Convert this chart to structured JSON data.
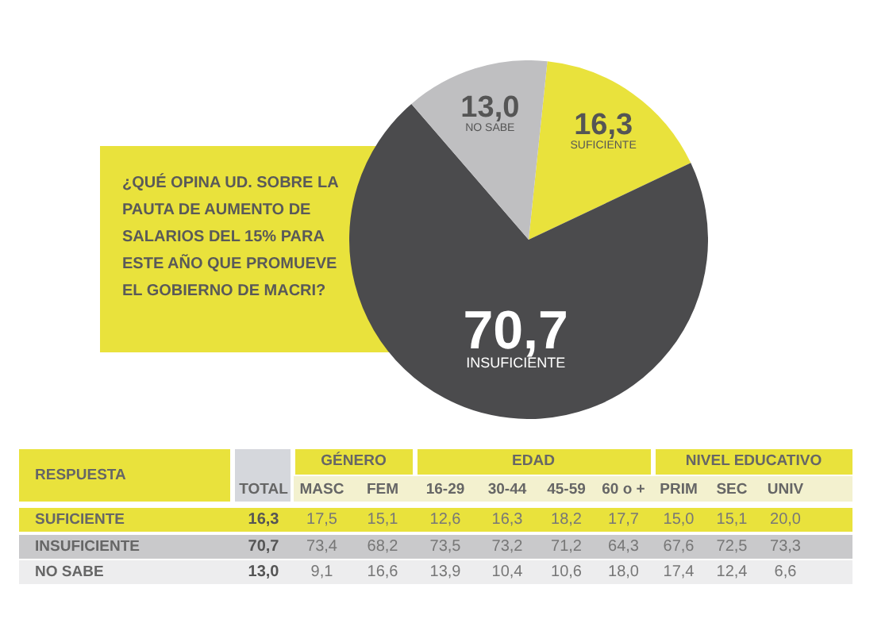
{
  "chart_data": [
    {
      "type": "pie",
      "title": "¿QUÉ OPINA UD. SOBRE LA PAUTA DE AUMENTO DE SALARIOS DEL 15% PARA ESTE AÑO QUE PROMUEVE EL GOBIERNO DE MACRI?",
      "categories": [
        "SUFICIENTE",
        "INSUFICIENTE",
        "NO SABE"
      ],
      "values": [
        16.3,
        70.7,
        13.0
      ],
      "colors": [
        "#e9e23c",
        "#4b4b4d",
        "#bfbfc1"
      ],
      "value_labels": [
        "16,3",
        "70,7",
        "13,0"
      ],
      "legend": false
    },
    {
      "type": "heatmap",
      "categories": [
        "TOTAL",
        "MASC",
        "FEM",
        "16-29",
        "30-44",
        "45-59",
        "60 o +",
        "PRIM",
        "SEC",
        "UNIV"
      ],
      "y_categories": [
        "SUFICIENTE",
        "INSUFICIENTE",
        "NO SABE"
      ],
      "cells": [
        [
          16.3,
          17.5,
          15.1,
          12.6,
          16.3,
          18.2,
          17.7,
          15.0,
          15.1,
          20.0
        ],
        [
          70.7,
          73.4,
          68.2,
          73.5,
          73.2,
          71.2,
          64.3,
          67.6,
          72.5,
          73.3
        ],
        [
          13.0,
          9.1,
          16.6,
          13.9,
          10.4,
          10.6,
          18.0,
          17.4,
          12.4,
          6.6
        ]
      ],
      "cell_labels": [
        [
          "16,3",
          "17,5",
          "15,1",
          "12,6",
          "16,3",
          "18,2",
          "17,7",
          "15,0",
          "15,1",
          "20,0"
        ],
        [
          "70,7",
          "73,4",
          "68,2",
          "73,5",
          "73,2",
          "71,2",
          "64,3",
          "67,6",
          "72,5",
          "73,3"
        ],
        [
          "13,0",
          "9,1",
          "16,6",
          "13,9",
          "10,4",
          "10,6",
          "18,0",
          "17,4",
          "12,4",
          "6,6"
        ]
      ],
      "annotations": [
        "RESPUESTA",
        "GÉNERO",
        "EDAD",
        "NIVEL EDUCATIVO"
      ]
    }
  ]
}
